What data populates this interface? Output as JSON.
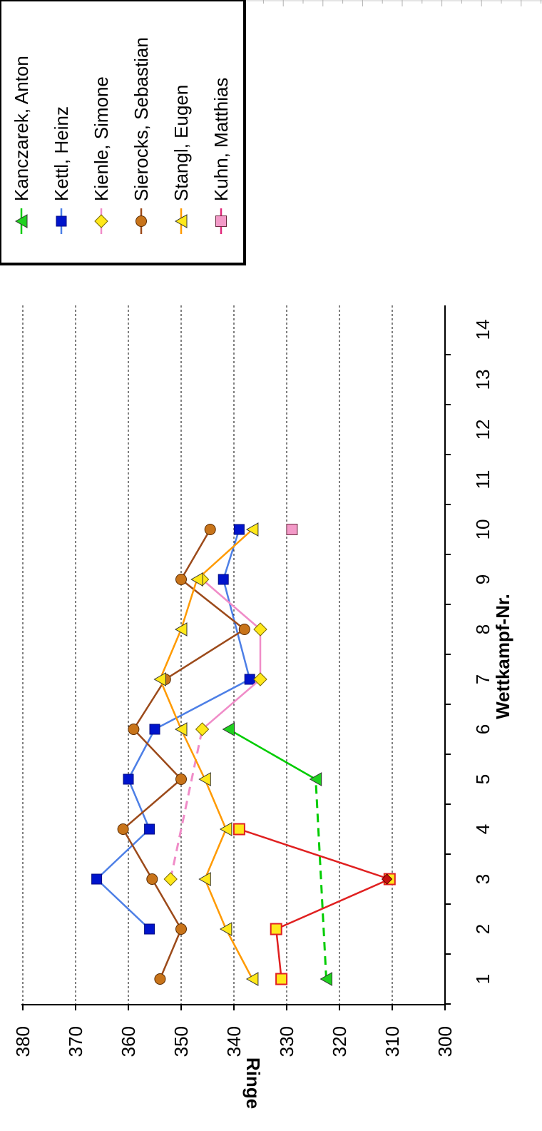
{
  "chart_data": {
    "type": "line",
    "xlabel": "Wettkampf-Nr.",
    "ylabel": "Ringe",
    "xlim": [
      0,
      14
    ],
    "ylim": [
      300,
      380
    ],
    "x_ticks": [
      "1",
      "2",
      "3",
      "4",
      "5",
      "6",
      "7",
      "8",
      "9",
      "10",
      "11",
      "12",
      "13",
      "14"
    ],
    "y_ticks": [
      "380",
      "370",
      "360",
      "350",
      "340",
      "330",
      "320",
      "310",
      "300"
    ],
    "grid": "horizontal dashed at 310-380",
    "legend_position": "top-right",
    "series": [
      {
        "name": "Kanczarek, Anton",
        "color": "#00cc00",
        "marker": "triangle-green",
        "points": [
          [
            1,
            322.5
          ],
          [
            5,
            324.5
          ],
          [
            6,
            341
          ]
        ],
        "dashed_segments": [
          [
            0,
            1
          ]
        ]
      },
      {
        "name": "Kettl, Heinz",
        "color": "#4d7fe6",
        "marker": "square-blue",
        "points": [
          [
            2,
            356
          ],
          [
            3,
            366
          ],
          [
            4,
            356
          ],
          [
            5,
            360
          ],
          [
            6,
            355
          ],
          [
            7,
            337
          ],
          [
            9,
            342
          ],
          [
            10,
            339
          ]
        ]
      },
      {
        "name": "Kienle, Simone",
        "color": "#f08cc8",
        "marker": "diamond-yellow",
        "points": [
          [
            3,
            352
          ],
          [
            6,
            346
          ],
          [
            7,
            335
          ],
          [
            8,
            335
          ],
          [
            9,
            346
          ]
        ],
        "dashed_segments": [
          [
            0,
            1
          ]
        ]
      },
      {
        "name": "Sierocks, Sebastian",
        "color": "#9c4a1a",
        "marker": "circle-orange",
        "points": [
          [
            1,
            354
          ],
          [
            2,
            350
          ],
          [
            3,
            355.5
          ],
          [
            4,
            361
          ],
          [
            5,
            350
          ],
          [
            6,
            359
          ],
          [
            7,
            353
          ],
          [
            8,
            338
          ],
          [
            9,
            350
          ],
          [
            10,
            344.5
          ]
        ]
      },
      {
        "name": "Stangl, Eugen",
        "color": "#ff9a00",
        "marker": "triangle-yellow",
        "points": [
          [
            1,
            336.5
          ],
          [
            2,
            341.5
          ],
          [
            3,
            345.5
          ],
          [
            4,
            341.5
          ],
          [
            5,
            345.5
          ],
          [
            6,
            350
          ],
          [
            7,
            354
          ],
          [
            8,
            350
          ],
          [
            9,
            347
          ],
          [
            10,
            336.5
          ]
        ]
      },
      {
        "name": "Kuhn, Matthias",
        "color": "#e0287a",
        "marker": "square-pink",
        "points": [
          [
            10,
            329
          ]
        ]
      }
    ],
    "extra_series": [
      {
        "color": "#e02020",
        "marker": "square-yellow-red",
        "points": [
          [
            1,
            331
          ],
          [
            2,
            332
          ],
          [
            3,
            310.5
          ],
          [
            4,
            339
          ]
        ],
        "inner_markers": [
          [
            3,
            311
          ]
        ]
      }
    ]
  }
}
